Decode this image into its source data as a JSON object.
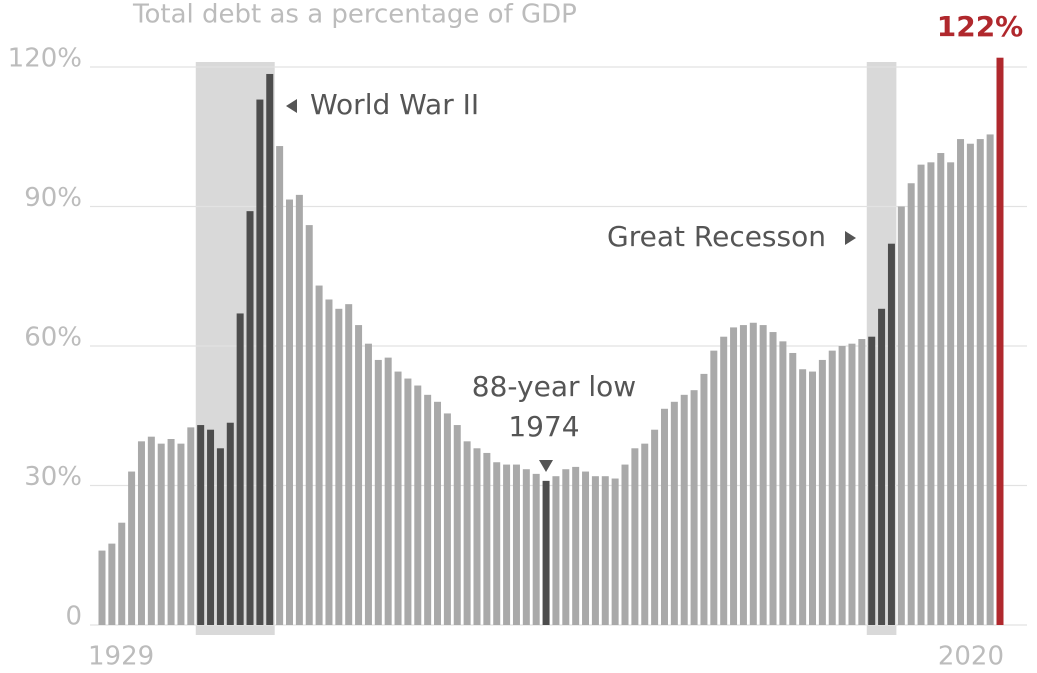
{
  "chart_data": {
    "type": "bar",
    "title": "Total debt as a percentage of GDP",
    "categories": [
      "1929",
      null,
      null,
      null,
      null,
      null,
      null,
      null,
      null,
      null,
      null,
      null,
      null,
      null,
      null,
      null,
      null,
      null,
      null,
      null,
      null,
      null,
      null,
      null,
      null,
      null,
      null,
      null,
      null,
      null,
      null,
      null,
      null,
      null,
      null,
      null,
      null,
      null,
      null,
      null,
      null,
      null,
      null,
      null,
      null,
      null,
      null,
      null,
      null,
      null,
      null,
      null,
      null,
      null,
      null,
      null,
      null,
      null,
      null,
      null,
      null,
      null,
      null,
      null,
      null,
      null,
      null,
      null,
      null,
      null,
      null,
      null,
      null,
      null,
      null,
      null,
      null,
      null,
      null,
      null,
      null,
      null,
      null,
      null,
      null,
      null,
      null,
      null,
      null,
      null,
      null,
      "2020"
    ],
    "values": [
      16,
      17.5,
      22,
      33,
      39.5,
      40.5,
      39,
      40,
      39,
      42.5,
      43,
      42,
      38,
      43.5,
      67,
      89,
      113,
      118.5,
      103,
      91.5,
      92.5,
      86,
      73,
      70,
      68,
      69,
      64.5,
      60.5,
      57,
      57.5,
      54.5,
      53,
      51.5,
      49.5,
      48,
      45.5,
      43,
      39.5,
      38,
      37,
      35,
      34.5,
      34.5,
      33.5,
      32.5,
      31,
      32,
      33.5,
      34,
      33,
      32,
      32,
      31.5,
      34.5,
      38,
      39,
      42,
      46.5,
      48,
      49.5,
      50.5,
      54,
      59,
      62,
      64,
      64.5,
      65,
      64.5,
      63,
      61,
      58.5,
      55,
      54.5,
      57,
      59,
      60,
      60.5,
      61.5,
      62,
      68,
      82,
      90,
      95,
      99,
      99.5,
      101.5,
      99.5,
      104.5,
      103.5,
      104.5,
      105.5,
      122
    ],
    "value_labels": [
      null,
      null,
      null,
      null,
      null,
      null,
      null,
      null,
      null,
      null,
      null,
      null,
      null,
      null,
      null,
      null,
      null,
      null,
      null,
      null,
      null,
      null,
      null,
      null,
      null,
      null,
      null,
      null,
      null,
      null,
      null,
      null,
      null,
      null,
      null,
      null,
      null,
      null,
      null,
      null,
      null,
      null,
      null,
      null,
      null,
      null,
      null,
      null,
      null,
      null,
      null,
      null,
      null,
      null,
      null,
      null,
      null,
      null,
      null,
      null,
      null,
      null,
      null,
      null,
      null,
      null,
      null,
      null,
      null,
      null,
      null,
      null,
      null,
      null,
      null,
      null,
      null,
      null,
      null,
      null,
      null,
      null,
      null,
      null,
      null,
      null,
      null,
      null,
      null,
      null,
      null,
      "122%"
    ],
    "colors": [
      "#a9a9a9",
      "#a9a9a9",
      "#a9a9a9",
      "#a9a9a9",
      "#a9a9a9",
      "#a9a9a9",
      "#a9a9a9",
      "#a9a9a9",
      "#a9a9a9",
      "#a9a9a9",
      "#4d4d4d",
      "#4d4d4d",
      "#4d4d4d",
      "#4d4d4d",
      "#4d4d4d",
      "#4d4d4d",
      "#4d4d4d",
      "#4d4d4d",
      "#a9a9a9",
      "#a9a9a9",
      "#a9a9a9",
      "#a9a9a9",
      "#a9a9a9",
      "#a9a9a9",
      "#a9a9a9",
      "#a9a9a9",
      "#a9a9a9",
      "#a9a9a9",
      "#a9a9a9",
      "#a9a9a9",
      "#a9a9a9",
      "#a9a9a9",
      "#a9a9a9",
      "#a9a9a9",
      "#a9a9a9",
      "#a9a9a9",
      "#a9a9a9",
      "#a9a9a9",
      "#a9a9a9",
      "#a9a9a9",
      "#a9a9a9",
      "#a9a9a9",
      "#a9a9a9",
      "#a9a9a9",
      "#a9a9a9",
      "#4d4d4d",
      "#a9a9a9",
      "#a9a9a9",
      "#a9a9a9",
      "#a9a9a9",
      "#a9a9a9",
      "#a9a9a9",
      "#a9a9a9",
      "#a9a9a9",
      "#a9a9a9",
      "#a9a9a9",
      "#a9a9a9",
      "#a9a9a9",
      "#a9a9a9",
      "#a9a9a9",
      "#a9a9a9",
      "#a9a9a9",
      "#a9a9a9",
      "#a9a9a9",
      "#a9a9a9",
      "#a9a9a9",
      "#a9a9a9",
      "#a9a9a9",
      "#a9a9a9",
      "#a9a9a9",
      "#a9a9a9",
      "#a9a9a9",
      "#a9a9a9",
      "#a9a9a9",
      "#a9a9a9",
      "#a9a9a9",
      "#a9a9a9",
      "#a9a9a9",
      "#4d4d4d",
      "#4d4d4d",
      "#4d4d4d",
      "#a9a9a9",
      "#a9a9a9",
      "#a9a9a9",
      "#a9a9a9",
      "#a9a9a9",
      "#a9a9a9",
      "#a9a9a9",
      "#a9a9a9",
      "#a9a9a9",
      "#a9a9a9",
      "#b0282d"
    ],
    "shaded": [
      [
        10,
        17
      ],
      [
        78,
        80
      ]
    ],
    "ylim": [
      0,
      126
    ],
    "yticks": [
      0,
      {
        "value": 30,
        "label": "30%"
      },
      {
        "value": 60,
        "label": "60%"
      },
      {
        "value": 90,
        "label": "90%"
      },
      {
        "value": 120,
        "label": "120%"
      }
    ],
    "grid": true,
    "annotations": [
      "World War II",
      "Great Recesson",
      "88-year low",
      "1974"
    ]
  }
}
